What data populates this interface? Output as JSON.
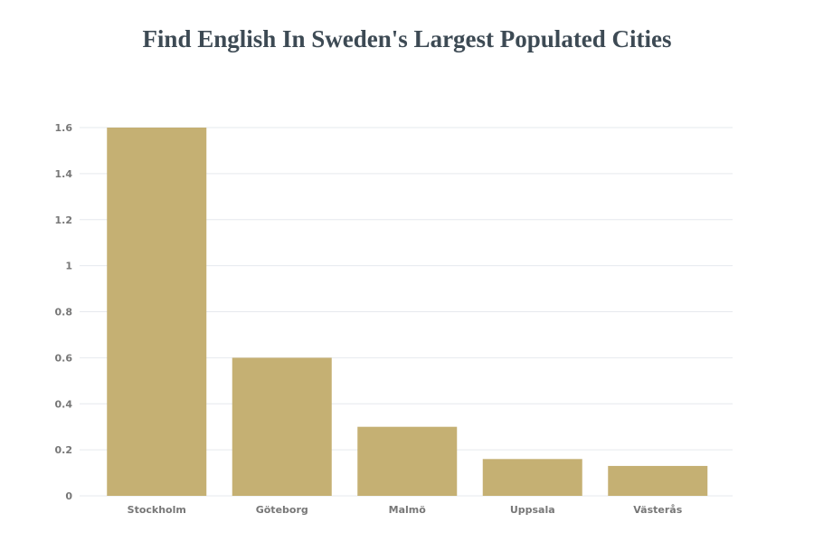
{
  "chart_data": {
    "type": "bar",
    "title": "Find English In Sweden's Largest Populated Cities",
    "categories": [
      "Stockholm",
      "Göteborg",
      "Malmö",
      "Uppsala",
      "Västerås"
    ],
    "values": [
      1.6,
      0.6,
      0.3,
      0.16,
      0.13
    ],
    "yticks": [
      "0",
      "0.2",
      "0.4",
      "0.6",
      "0.8",
      "1",
      "1.2",
      "1.4",
      "1.6"
    ],
    "ylim": [
      0,
      1.6
    ],
    "xlabel": "",
    "ylabel": "",
    "grid": true,
    "bar_color": "#c5b073"
  }
}
